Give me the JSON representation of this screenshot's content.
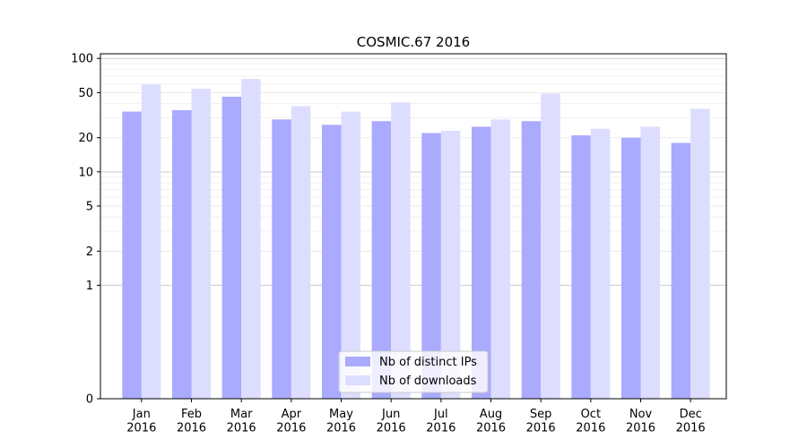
{
  "chart_data": {
    "type": "bar",
    "title": "COSMIC.67 2016",
    "xlabel": "",
    "ylabel": "",
    "yscale": "symlog",
    "ylim": [
      0,
      110
    ],
    "yticks": [
      0,
      1,
      2,
      5,
      10,
      20,
      50,
      100
    ],
    "grid": "y-major-and-minor",
    "legend_position": "bottom-center",
    "categories": [
      "Jan\n2016",
      "Feb\n2016",
      "Mar\n2016",
      "Apr\n2016",
      "May\n2016",
      "Jun\n2016",
      "Jul\n2016",
      "Aug\n2016",
      "Sep\n2016",
      "Oct\n2016",
      "Nov\n2016",
      "Dec\n2016"
    ],
    "series": [
      {
        "name": "Nb of distinct IPs",
        "color": "#aaaaff",
        "values": [
          34,
          35,
          46,
          29,
          26,
          28,
          22,
          25,
          28,
          21,
          20,
          18
        ]
      },
      {
        "name": "Nb of downloads",
        "color": "#ddddff",
        "values": [
          59,
          54,
          66,
          38,
          34,
          41,
          23,
          29,
          49,
          24,
          25,
          36
        ]
      }
    ]
  }
}
